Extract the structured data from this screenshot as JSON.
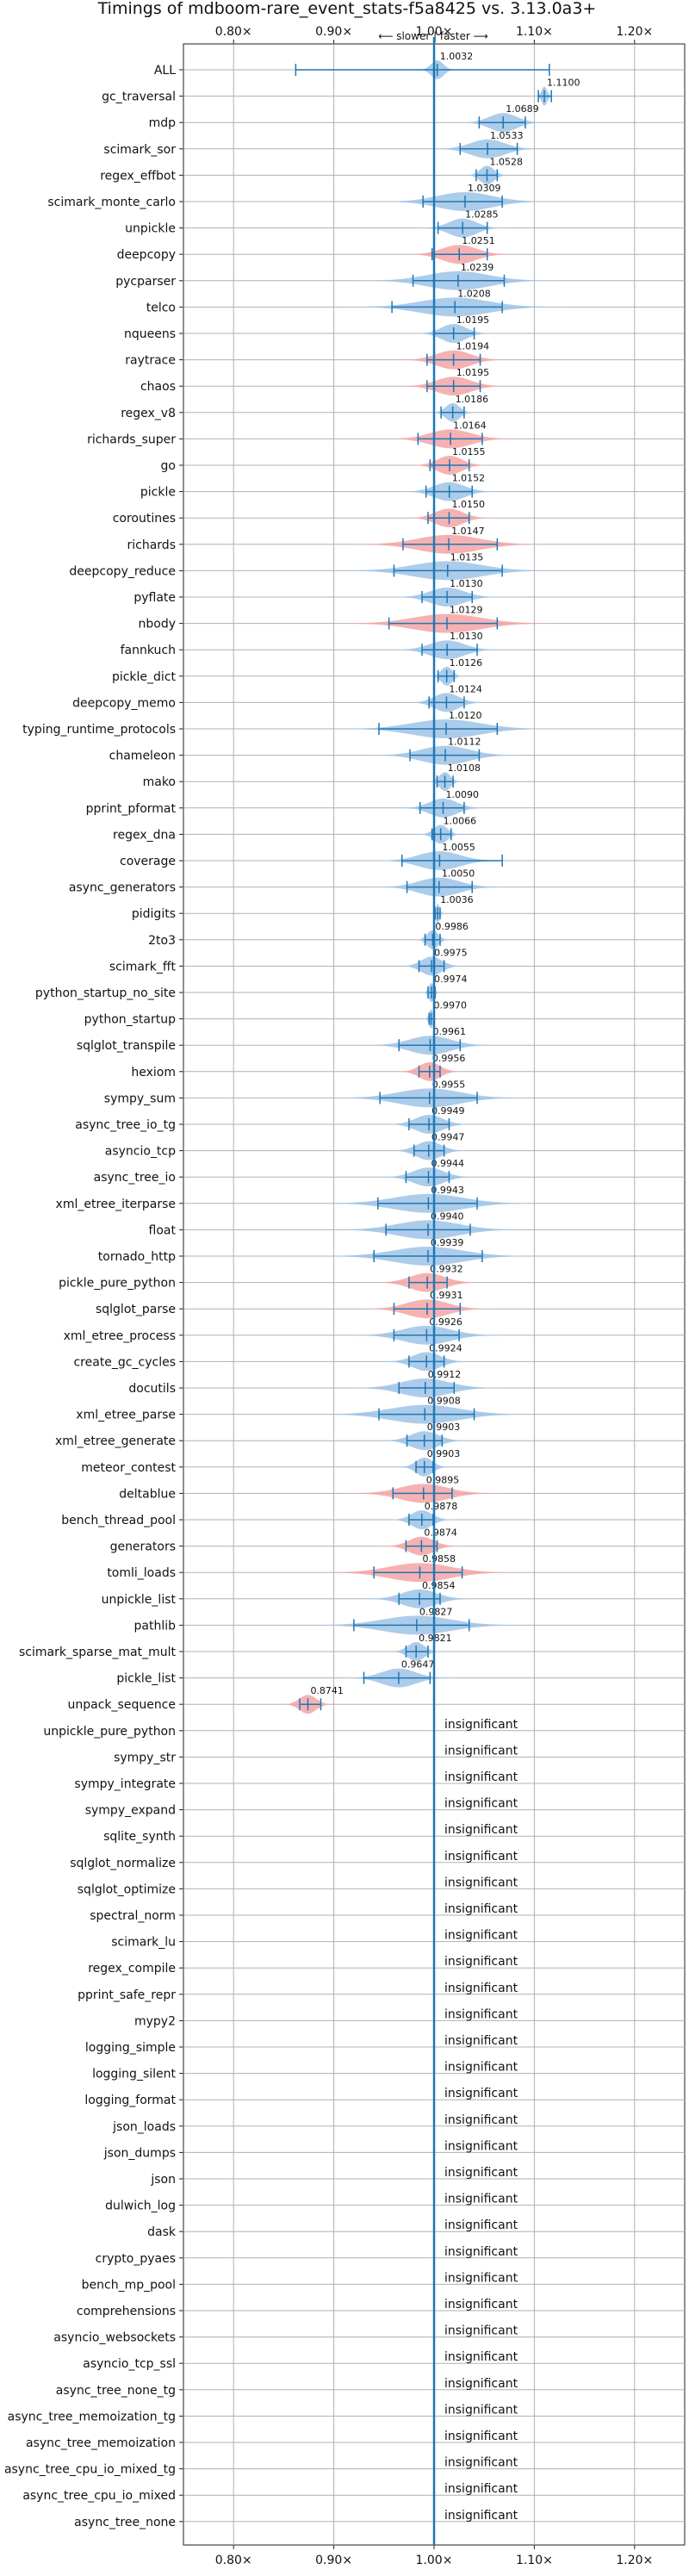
{
  "chart_data": {
    "type": "violin",
    "title": "Timings of mdboom-rare_event_stats-f5a8425 vs. 3.13.0a3+",
    "direction_label": "⟵ slower | faster ⟶",
    "xlim": [
      0.75,
      1.25
    ],
    "x_ticks": [
      {
        "value": 0.8,
        "label": "0.80×"
      },
      {
        "value": 0.9,
        "label": "0.90×"
      },
      {
        "value": 1.0,
        "label": "1.00×"
      },
      {
        "value": 1.1,
        "label": "1.10×"
      },
      {
        "value": 1.2,
        "label": "1.20×"
      }
    ],
    "grid": true,
    "colors": {
      "faster": "#9dc3e6",
      "slower": "#f4a5a5",
      "line": "#1f77b4",
      "grid": "#b0b0b0"
    },
    "insignificant_label": "insignificant",
    "benchmarks": [
      {
        "name": "ALL",
        "value": 1.0032,
        "label": "1.0032",
        "spread": 0.009,
        "lo": 0.862,
        "hi": 1.115,
        "color": "faster"
      },
      {
        "name": "gc_traversal",
        "value": 1.11,
        "label": "1.1100",
        "spread": 0.004,
        "lo": 1.104,
        "hi": 1.117,
        "color": "faster"
      },
      {
        "name": "mdp",
        "value": 1.0689,
        "label": "1.0689",
        "spread": 0.02,
        "lo": 1.045,
        "hi": 1.091,
        "color": "faster"
      },
      {
        "name": "scimark_sor",
        "value": 1.0533,
        "label": "1.0533",
        "spread": 0.025,
        "lo": 1.026,
        "hi": 1.083,
        "color": "faster"
      },
      {
        "name": "regex_effbot",
        "value": 1.0528,
        "label": "1.0528",
        "spread": 0.01,
        "lo": 1.042,
        "hi": 1.063,
        "color": "faster"
      },
      {
        "name": "scimark_monte_carlo",
        "value": 1.0309,
        "label": "1.0309",
        "spread": 0.04,
        "lo": 0.989,
        "hi": 1.068,
        "color": "faster"
      },
      {
        "name": "unpickle",
        "value": 1.0285,
        "label": "1.0285",
        "spread": 0.02,
        "lo": 1.004,
        "hi": 1.053,
        "color": "faster"
      },
      {
        "name": "deepcopy",
        "value": 1.0251,
        "label": "1.0251",
        "spread": 0.025,
        "lo": 0.998,
        "hi": 1.053,
        "color": "slower"
      },
      {
        "name": "pycparser",
        "value": 1.0239,
        "label": "1.0239",
        "spread": 0.045,
        "lo": 0.979,
        "hi": 1.07,
        "color": "faster"
      },
      {
        "name": "telco",
        "value": 1.0208,
        "label": "1.0208",
        "spread": 0.05,
        "lo": 0.958,
        "hi": 1.068,
        "color": "faster"
      },
      {
        "name": "nqueens",
        "value": 1.0195,
        "label": "1.0195",
        "spread": 0.018,
        "lo": 1.0,
        "hi": 1.04,
        "color": "faster"
      },
      {
        "name": "raytrace",
        "value": 1.0194,
        "label": "1.0194",
        "spread": 0.025,
        "lo": 0.993,
        "hi": 1.046,
        "color": "slower"
      },
      {
        "name": "chaos",
        "value": 1.0195,
        "label": "1.0195",
        "spread": 0.025,
        "lo": 0.993,
        "hi": 1.046,
        "color": "slower"
      },
      {
        "name": "regex_v8",
        "value": 1.0186,
        "label": "1.0186",
        "spread": 0.01,
        "lo": 1.007,
        "hi": 1.03,
        "color": "faster"
      },
      {
        "name": "richards_super",
        "value": 1.0164,
        "label": "1.0164",
        "spread": 0.03,
        "lo": 0.984,
        "hi": 1.048,
        "color": "slower"
      },
      {
        "name": "go",
        "value": 1.0155,
        "label": "1.0155",
        "spread": 0.018,
        "lo": 0.996,
        "hi": 1.035,
        "color": "slower"
      },
      {
        "name": "pickle",
        "value": 1.0152,
        "label": "1.0152",
        "spread": 0.022,
        "lo": 0.992,
        "hi": 1.038,
        "color": "faster"
      },
      {
        "name": "coroutines",
        "value": 1.015,
        "label": "1.0150",
        "spread": 0.02,
        "lo": 0.994,
        "hi": 1.035,
        "color": "slower"
      },
      {
        "name": "richards",
        "value": 1.0147,
        "label": "1.0147",
        "spread": 0.045,
        "lo": 0.969,
        "hi": 1.063,
        "color": "slower"
      },
      {
        "name": "deepcopy_reduce",
        "value": 1.0135,
        "label": "1.0135",
        "spread": 0.05,
        "lo": 0.96,
        "hi": 1.068,
        "color": "faster"
      },
      {
        "name": "pyflate",
        "value": 1.013,
        "label": "1.0130",
        "spread": 0.025,
        "lo": 0.988,
        "hi": 1.038,
        "color": "faster"
      },
      {
        "name": "nbody",
        "value": 1.0129,
        "label": "1.0129",
        "spread": 0.05,
        "lo": 0.955,
        "hi": 1.063,
        "color": "slower"
      },
      {
        "name": "fannkuch",
        "value": 1.013,
        "label": "1.0130",
        "spread": 0.025,
        "lo": 0.988,
        "hi": 1.043,
        "color": "faster"
      },
      {
        "name": "pickle_dict",
        "value": 1.0126,
        "label": "1.0126",
        "spread": 0.008,
        "lo": 1.004,
        "hi": 1.02,
        "color": "faster"
      },
      {
        "name": "deepcopy_memo",
        "value": 1.0124,
        "label": "1.0124",
        "spread": 0.018,
        "lo": 0.995,
        "hi": 1.03,
        "color": "faster"
      },
      {
        "name": "typing_runtime_protocols",
        "value": 1.012,
        "label": "1.0120",
        "spread": 0.05,
        "lo": 0.945,
        "hi": 1.063,
        "color": "faster"
      },
      {
        "name": "chameleon",
        "value": 1.0112,
        "label": "1.0112",
        "spread": 0.035,
        "lo": 0.976,
        "hi": 1.045,
        "color": "faster"
      },
      {
        "name": "mako",
        "value": 1.0108,
        "label": "1.0108",
        "spread": 0.008,
        "lo": 1.003,
        "hi": 1.019,
        "color": "faster"
      },
      {
        "name": "pprint_pformat",
        "value": 1.009,
        "label": "1.0090",
        "spread": 0.02,
        "lo": 0.986,
        "hi": 1.03,
        "color": "faster"
      },
      {
        "name": "regex_dna",
        "value": 1.0066,
        "label": "1.0066",
        "spread": 0.01,
        "lo": 0.998,
        "hi": 1.017,
        "color": "faster"
      },
      {
        "name": "coverage",
        "value": 1.0055,
        "label": "1.0055",
        "spread": 0.03,
        "lo": 0.968,
        "hi": 1.068,
        "color": "faster"
      },
      {
        "name": "async_generators",
        "value": 1.005,
        "label": "1.0050",
        "spread": 0.03,
        "lo": 0.973,
        "hi": 1.038,
        "color": "faster"
      },
      {
        "name": "pidigits",
        "value": 1.0036,
        "label": "1.0036",
        "spread": 0.003,
        "lo": 1.001,
        "hi": 1.006,
        "color": "faster"
      },
      {
        "name": "2to3",
        "value": 0.9986,
        "label": "0.9986",
        "spread": 0.008,
        "lo": 0.991,
        "hi": 1.006,
        "color": "faster"
      },
      {
        "name": "scimark_fft",
        "value": 0.9975,
        "label": "0.9975",
        "spread": 0.015,
        "lo": 0.985,
        "hi": 1.01,
        "color": "faster"
      },
      {
        "name": "python_startup_no_site",
        "value": 0.9974,
        "label": "0.9974",
        "spread": 0.004,
        "lo": 0.994,
        "hi": 1.001,
        "color": "faster"
      },
      {
        "name": "python_startup",
        "value": 0.997,
        "label": "0.9970",
        "spread": 0.003,
        "lo": 0.995,
        "hi": 1.0,
        "color": "faster"
      },
      {
        "name": "sqlglot_transpile",
        "value": 0.9961,
        "label": "0.9961",
        "spread": 0.03,
        "lo": 0.965,
        "hi": 1.026,
        "color": "faster"
      },
      {
        "name": "hexiom",
        "value": 0.9956,
        "label": "0.9956",
        "spread": 0.015,
        "lo": 0.985,
        "hi": 1.006,
        "color": "slower"
      },
      {
        "name": "sympy_sum",
        "value": 0.9955,
        "label": "0.9955",
        "spread": 0.045,
        "lo": 0.946,
        "hi": 1.043,
        "color": "faster"
      },
      {
        "name": "async_tree_io_tg",
        "value": 0.9949,
        "label": "0.9949",
        "spread": 0.02,
        "lo": 0.975,
        "hi": 1.015,
        "color": "faster"
      },
      {
        "name": "asyncio_tcp",
        "value": 0.9947,
        "label": "0.9947",
        "spread": 0.018,
        "lo": 0.98,
        "hi": 1.01,
        "color": "faster"
      },
      {
        "name": "async_tree_io",
        "value": 0.9944,
        "label": "0.9944",
        "spread": 0.022,
        "lo": 0.972,
        "hi": 1.015,
        "color": "faster"
      },
      {
        "name": "xml_etree_iterparse",
        "value": 0.9943,
        "label": "0.9943",
        "spread": 0.05,
        "lo": 0.944,
        "hi": 1.043,
        "color": "faster"
      },
      {
        "name": "float",
        "value": 0.994,
        "label": "0.9940",
        "spread": 0.045,
        "lo": 0.952,
        "hi": 1.036,
        "color": "faster"
      },
      {
        "name": "tornado_http",
        "value": 0.9939,
        "label": "0.9939",
        "spread": 0.05,
        "lo": 0.94,
        "hi": 1.048,
        "color": "faster"
      },
      {
        "name": "pickle_pure_python",
        "value": 0.9932,
        "label": "0.9932",
        "spread": 0.025,
        "lo": 0.975,
        "hi": 1.013,
        "color": "slower"
      },
      {
        "name": "sqlglot_parse",
        "value": 0.9931,
        "label": "0.9931",
        "spread": 0.03,
        "lo": 0.96,
        "hi": 1.026,
        "color": "slower"
      },
      {
        "name": "xml_etree_process",
        "value": 0.9926,
        "label": "0.9926",
        "spread": 0.035,
        "lo": 0.96,
        "hi": 1.025,
        "color": "faster"
      },
      {
        "name": "create_gc_cycles",
        "value": 0.9924,
        "label": "0.9924",
        "spread": 0.02,
        "lo": 0.975,
        "hi": 1.01,
        "color": "faster"
      },
      {
        "name": "docutils",
        "value": 0.9912,
        "label": "0.9912",
        "spread": 0.035,
        "lo": 0.965,
        "hi": 1.02,
        "color": "faster"
      },
      {
        "name": "xml_etree_parse",
        "value": 0.9908,
        "label": "0.9908",
        "spread": 0.05,
        "lo": 0.945,
        "hi": 1.04,
        "color": "faster"
      },
      {
        "name": "xml_etree_generate",
        "value": 0.9903,
        "label": "0.9903",
        "spread": 0.02,
        "lo": 0.973,
        "hi": 1.008,
        "color": "faster"
      },
      {
        "name": "meteor_contest",
        "value": 0.9903,
        "label": "0.9903",
        "spread": 0.012,
        "lo": 0.982,
        "hi": 0.999,
        "color": "faster"
      },
      {
        "name": "deltablue",
        "value": 0.9895,
        "label": "0.9895",
        "spread": 0.035,
        "lo": 0.959,
        "hi": 1.018,
        "color": "slower"
      },
      {
        "name": "bench_thread_pool",
        "value": 0.9878,
        "label": "0.9878",
        "spread": 0.015,
        "lo": 0.975,
        "hi": 0.999,
        "color": "faster"
      },
      {
        "name": "generators",
        "value": 0.9874,
        "label": "0.9874",
        "spread": 0.018,
        "lo": 0.972,
        "hi": 1.003,
        "color": "slower"
      },
      {
        "name": "tomli_loads",
        "value": 0.9858,
        "label": "0.9858",
        "spread": 0.045,
        "lo": 0.94,
        "hi": 1.028,
        "color": "slower"
      },
      {
        "name": "unpickle_list",
        "value": 0.9854,
        "label": "0.9854",
        "spread": 0.025,
        "lo": 0.965,
        "hi": 1.006,
        "color": "faster"
      },
      {
        "name": "pathlib",
        "value": 0.9827,
        "label": "0.9827",
        "spread": 0.05,
        "lo": 0.92,
        "hi": 1.035,
        "color": "faster"
      },
      {
        "name": "scimark_sparse_mat_mult",
        "value": 0.9821,
        "label": "0.9821",
        "spread": 0.012,
        "lo": 0.972,
        "hi": 0.994,
        "color": "faster"
      },
      {
        "name": "pickle_list",
        "value": 0.9647,
        "label": "0.9647",
        "spread": 0.025,
        "lo": 0.93,
        "hi": 0.996,
        "color": "faster"
      },
      {
        "name": "unpack_sequence",
        "value": 0.8741,
        "label": "0.8741",
        "spread": 0.012,
        "lo": 0.866,
        "hi": 0.887,
        "color": "slower"
      },
      {
        "name": "unpickle_pure_python",
        "insignificant": true
      },
      {
        "name": "sympy_str",
        "insignificant": true
      },
      {
        "name": "sympy_integrate",
        "insignificant": true
      },
      {
        "name": "sympy_expand",
        "insignificant": true
      },
      {
        "name": "sqlite_synth",
        "insignificant": true
      },
      {
        "name": "sqlglot_normalize",
        "insignificant": true
      },
      {
        "name": "sqlglot_optimize",
        "insignificant": true
      },
      {
        "name": "spectral_norm",
        "insignificant": true
      },
      {
        "name": "scimark_lu",
        "insignificant": true
      },
      {
        "name": "regex_compile",
        "insignificant": true
      },
      {
        "name": "pprint_safe_repr",
        "insignificant": true
      },
      {
        "name": "mypy2",
        "insignificant": true
      },
      {
        "name": "logging_simple",
        "insignificant": true
      },
      {
        "name": "logging_silent",
        "insignificant": true
      },
      {
        "name": "logging_format",
        "insignificant": true
      },
      {
        "name": "json_loads",
        "insignificant": true
      },
      {
        "name": "json_dumps",
        "insignificant": true
      },
      {
        "name": "json",
        "insignificant": true
      },
      {
        "name": "dulwich_log",
        "insignificant": true
      },
      {
        "name": "dask",
        "insignificant": true
      },
      {
        "name": "crypto_pyaes",
        "insignificant": true
      },
      {
        "name": "bench_mp_pool",
        "insignificant": true
      },
      {
        "name": "comprehensions",
        "insignificant": true
      },
      {
        "name": "asyncio_websockets",
        "insignificant": true
      },
      {
        "name": "asyncio_tcp_ssl",
        "insignificant": true
      },
      {
        "name": "async_tree_none_tg",
        "insignificant": true
      },
      {
        "name": "async_tree_memoization_tg",
        "insignificant": true
      },
      {
        "name": "async_tree_memoization",
        "insignificant": true
      },
      {
        "name": "async_tree_cpu_io_mixed_tg",
        "insignificant": true
      },
      {
        "name": "async_tree_cpu_io_mixed",
        "insignificant": true
      },
      {
        "name": "async_tree_none",
        "insignificant": true
      }
    ]
  }
}
